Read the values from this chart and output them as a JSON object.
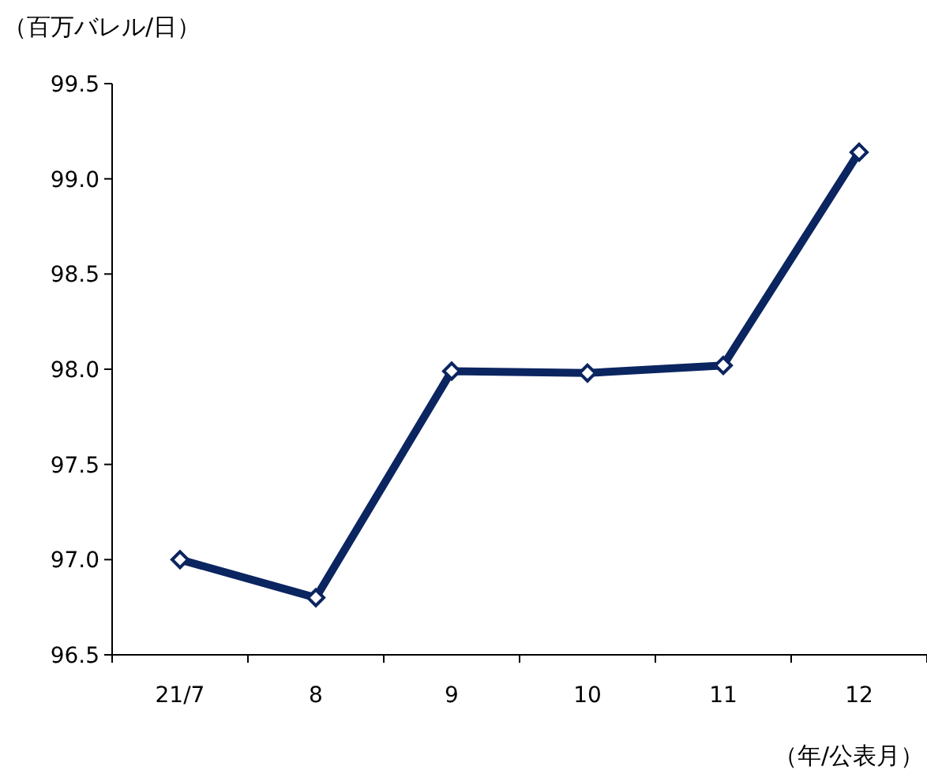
{
  "chart_data": {
    "type": "line",
    "ylabel": "（百万バレル/日）",
    "xlabel": "（年/公表月）",
    "categories": [
      "21/7",
      "8",
      "9",
      "10",
      "11",
      "12"
    ],
    "series": [
      {
        "color": "#0b2560",
        "values": [
          97.0,
          96.8,
          97.99,
          97.98,
          98.02,
          99.14
        ]
      }
    ],
    "ylim": [
      96.5,
      99.5
    ],
    "yticks": [
      {
        "value": 96.5,
        "label": "96.5"
      },
      {
        "value": 97,
        "label": "97.0"
      },
      {
        "value": 97.5,
        "label": "97.5"
      },
      {
        "value": 98,
        "label": "98.0"
      },
      {
        "value": 98.5,
        "label": "98.5"
      },
      {
        "value": 99,
        "label": "99.0"
      },
      {
        "value": 99.5,
        "label": "99.5"
      }
    ],
    "grid": false,
    "marker": "diamond",
    "line_style": "solid"
  }
}
